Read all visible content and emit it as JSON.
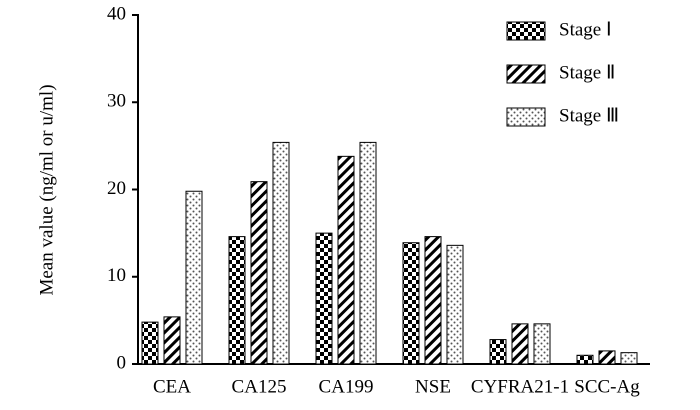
{
  "chart_data": {
    "type": "bar",
    "y_label": "Mean value (ng/ml or u/ml)",
    "categories": [
      "CEA",
      "CA125",
      "CA199",
      "NSE",
      "CYFRA21-1",
      "SCC-Ag"
    ],
    "series": [
      {
        "name": "Stage Ⅰ",
        "color": "#000000",
        "pattern": "checker",
        "values": [
          4.8,
          14.6,
          15.0,
          13.9,
          2.8,
          1.0
        ]
      },
      {
        "name": "Stage Ⅱ",
        "color": "#000000",
        "pattern": "hatch",
        "values": [
          5.4,
          20.9,
          23.8,
          14.6,
          4.6,
          1.5
        ]
      },
      {
        "name": "Stage Ⅲ",
        "color": "#000000",
        "pattern": "dots",
        "values": [
          19.8,
          25.4,
          25.4,
          13.6,
          4.6,
          1.3
        ]
      }
    ],
    "ylim": [
      0,
      40
    ],
    "yticks": [
      0,
      10,
      20,
      30,
      40
    ],
    "grid": false,
    "legend": "top-right"
  }
}
